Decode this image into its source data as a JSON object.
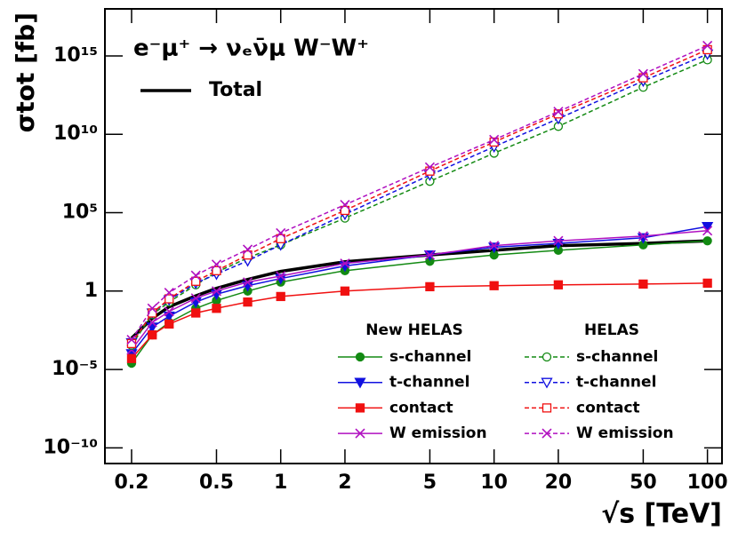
{
  "chart_data": {
    "type": "line",
    "title": "e⁻μ⁺ → νₑν̄μ W⁻W⁺",
    "x_label": "√s [TeV]",
    "y_label": "σtot [fb]",
    "x_log": true,
    "y_log": true,
    "xlim": [
      0.15,
      117
    ],
    "ylim": [
      1e-11,
      1e+18
    ],
    "xticks": [
      0.2,
      0.5,
      1,
      2,
      5,
      10,
      20,
      50,
      100
    ],
    "yticks": [
      {
        "value": 1e-10,
        "label": "10⁻¹⁰"
      },
      {
        "value": 1e-05,
        "label": "10⁻⁵"
      },
      1,
      {
        "value": 100000.0,
        "label": "10⁵"
      },
      {
        "value": 10000000000.0,
        "label": "10¹⁰"
      },
      {
        "value": 1000000000000000.0,
        "label": "10¹⁵"
      }
    ],
    "x": [
      0.2,
      0.25,
      0.3,
      0.4,
      0.5,
      0.7,
      1,
      2,
      5,
      10,
      20,
      50,
      100
    ],
    "series": [
      {
        "name": "Total",
        "color": "#000000",
        "width": 3.5,
        "dashed": false,
        "marker": "none",
        "values": [
          0.001,
          0.018,
          0.1,
          0.5,
          1.5,
          5.5,
          18,
          74,
          200,
          400,
          790,
          1100,
          1600
        ]
      },
      {
        "name": "s-channel",
        "group": "New HELAS",
        "color": "#138a13",
        "width": 1.5,
        "dashed": false,
        "marker": "circle",
        "filled": true,
        "values": [
          2.5e-05,
          0.0016,
          0.01,
          0.079,
          0.25,
          1,
          3.7,
          20,
          79,
          200,
          400,
          890,
          1600
        ]
      },
      {
        "name": "t-channel",
        "group": "New HELAS",
        "color": "#1010e0",
        "width": 1.5,
        "dashed": false,
        "marker": "triangle",
        "filled": true,
        "values": [
          0.0001,
          0.005,
          0.025,
          0.2,
          0.63,
          2.2,
          6.3,
          40,
          200,
          630,
          1100,
          2500,
          13000.0
        ]
      },
      {
        "name": "contact",
        "group": "New HELAS",
        "color": "#f01010",
        "width": 1.5,
        "dashed": false,
        "marker": "square",
        "filled": true,
        "values": [
          5e-05,
          0.0016,
          0.0079,
          0.04,
          0.079,
          0.2,
          0.45,
          1,
          1.9,
          2.2,
          2.5,
          2.8,
          3.2
        ]
      },
      {
        "name": "W emission",
        "group": "New HELAS",
        "color": "#b010c0",
        "width": 1.5,
        "dashed": false,
        "marker": "x",
        "filled": true,
        "values": [
          0.00018,
          0.01,
          0.05,
          0.35,
          1,
          3.7,
          9.1,
          58,
          200,
          790,
          1600,
          3200,
          7100
        ]
      },
      {
        "name": "s-channel",
        "group": "HELAS",
        "color": "#138a13",
        "width": 1.5,
        "dashed": true,
        "marker": "circle",
        "filled": false,
        "values": [
          0.00035,
          0.032,
          0.2,
          2.5,
          16,
          130,
          890,
          45000.0,
          10000000.0,
          630000000.0,
          32000000000.0,
          10000000000000.0,
          560000000000000.0
        ]
      },
      {
        "name": "t-channel",
        "group": "HELAS",
        "color": "#1010e0",
        "width": 1.5,
        "dashed": true,
        "marker": "triangle",
        "filled": false,
        "values": [
          0.0005,
          0.04,
          0.27,
          3.2,
          12,
          85,
          890,
          79000.0,
          25000000.0,
          1600000000.0,
          100000000000.0,
          25000000000000.0,
          1300000000000000.0
        ]
      },
      {
        "name": "contact",
        "group": "HELAS",
        "color": "#f01010",
        "width": 1.5,
        "dashed": true,
        "marker": "square",
        "filled": false,
        "values": [
          0.00045,
          0.04,
          0.32,
          4.2,
          20,
          200,
          2200,
          140000.0,
          45000000.0,
          3200000000.0,
          200000000000.0,
          40000000000000.0,
          2500000000000000.0
        ]
      },
      {
        "name": "W emission",
        "group": "HELAS",
        "color": "#b010c0",
        "width": 1.5,
        "dashed": true,
        "marker": "x",
        "filled": false,
        "values": [
          0.00079,
          0.079,
          0.79,
          10,
          50,
          450,
          5000,
          320000.0,
          79000000.0,
          4500000000.0,
          280000000000.0,
          71000000000000.0,
          4500000000000000.0
        ]
      }
    ]
  }
}
